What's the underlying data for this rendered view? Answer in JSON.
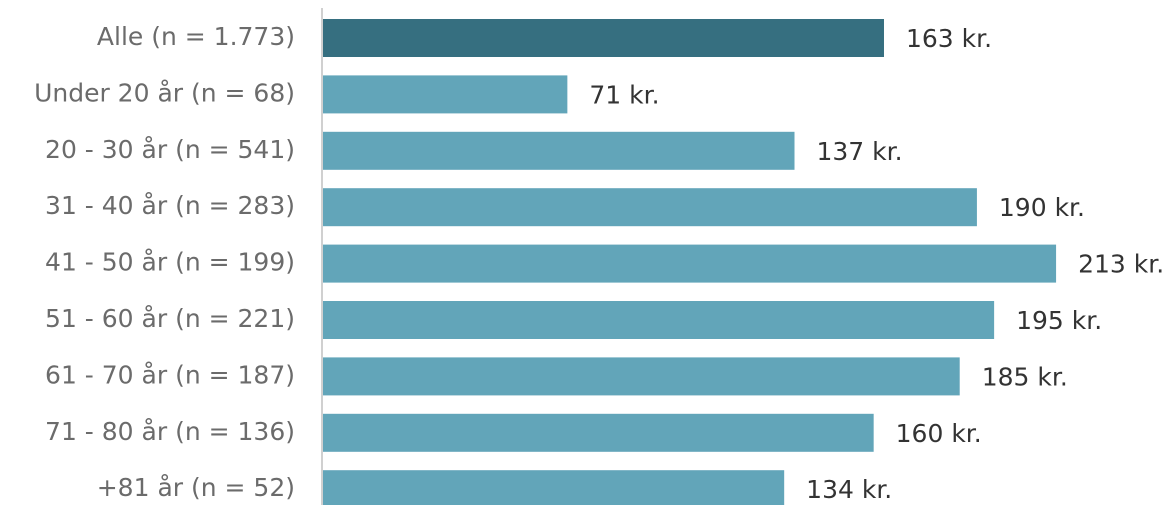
{
  "chart_data": {
    "type": "bar",
    "orientation": "horizontal",
    "categories": [
      "Alle (n = 1.773)",
      "Under 20 år (n = 68)",
      "20 - 30 år (n = 541)",
      "31 - 40 år (n = 283)",
      "41 - 50 år (n = 199)",
      "51 - 60 år (n = 221)",
      "61 - 70 år (n = 187)",
      "71 - 80 år (n = 136)",
      "+81 år (n = 52)"
    ],
    "values": [
      163,
      71,
      137,
      190,
      213,
      195,
      185,
      160,
      134
    ],
    "value_labels": [
      "163 kr.",
      "71 kr.",
      "137 kr.",
      "190 kr.",
      "213 kr.",
      "195 kr.",
      "185 kr.",
      "160 kr.",
      "134 kr."
    ],
    "colors": [
      "#366f80",
      "#62a5b9",
      "#62a5b9",
      "#62a5b9",
      "#62a5b9",
      "#62a5b9",
      "#62a5b9",
      "#62a5b9",
      "#62a5b9"
    ],
    "xlim": [
      0,
      240
    ]
  }
}
